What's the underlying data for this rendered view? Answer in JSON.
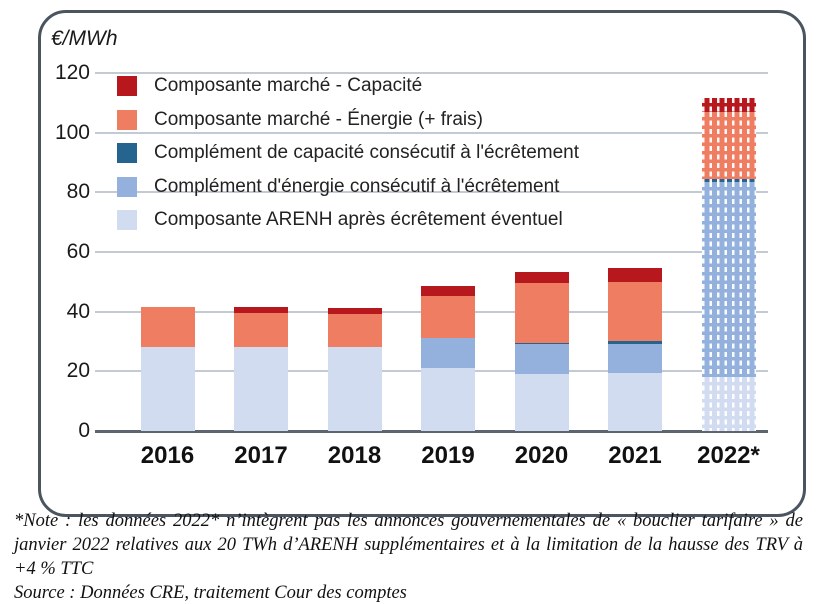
{
  "panel": {
    "unit_label": "€/MWh"
  },
  "note": {
    "text": "*Note : les données 2022* n’intègrent pas les annonces gouvernementales de « bouclier tarifaire » de janvier 2022 relatives aux 20 TWh d’ARENH supplémentaires et à la limitation de la hausse des TRV à +4 % TTC",
    "source": "Source : Données CRE, traitement Cour des comptes"
  },
  "colors": {
    "panel_border": "#4a5560",
    "gridline": "#c3cad3",
    "axis_baseline": "#5d6670",
    "marche_capacite": "#b7181d",
    "marche_energie": "#ee7d62",
    "complement_capacite": "#24648f",
    "complement_energie": "#93b1dc",
    "arenh": "#d2dcf0"
  },
  "chart_data": {
    "type": "bar",
    "stacked": true,
    "unit_label": "€/MWh",
    "categories": [
      "2016",
      "2017",
      "2018",
      "2019",
      "2020",
      "2021",
      "2022*"
    ],
    "hatched_category": "2022*",
    "ylim": [
      0,
      120
    ],
    "y_ticks": [
      0,
      20,
      40,
      60,
      80,
      100,
      120
    ],
    "grid": true,
    "legend_position": "top-left-inside",
    "series_bottom_to_top": [
      {
        "key": "arenh",
        "name": "Composante ARENH après écrêtement éventuel",
        "color": "#d2dcf0",
        "values": [
          28,
          28,
          28,
          21,
          19,
          19.5,
          18
        ]
      },
      {
        "key": "complement-energie",
        "name": "Complément d'énergie consécutif à l'écrêtement",
        "color": "#93b1dc",
        "values": [
          0,
          0,
          0,
          10,
          10,
          9.5,
          65.5
        ]
      },
      {
        "key": "complement-capacite",
        "name": "Complément de capacité consécutif à l'écrêtement",
        "color": "#24648f",
        "values": [
          0,
          0,
          0,
          0.3,
          0.4,
          1.3,
          1
        ]
      },
      {
        "key": "marche-energie",
        "name": "Composante marché - Énergie (+ frais)",
        "color": "#ee7d62",
        "values": [
          13.5,
          11.5,
          11.3,
          14,
          20.2,
          19.8,
          22.5
        ]
      },
      {
        "key": "marche-capacite",
        "name": "Composante marché - Capacité",
        "color": "#b7181d",
        "values": [
          0,
          2,
          1.8,
          3.2,
          3.6,
          4.5,
          4.5
        ]
      }
    ],
    "totals": [
      41.5,
      41.5,
      41.1,
      48.5,
      53.2,
      54.6,
      111.5
    ]
  }
}
